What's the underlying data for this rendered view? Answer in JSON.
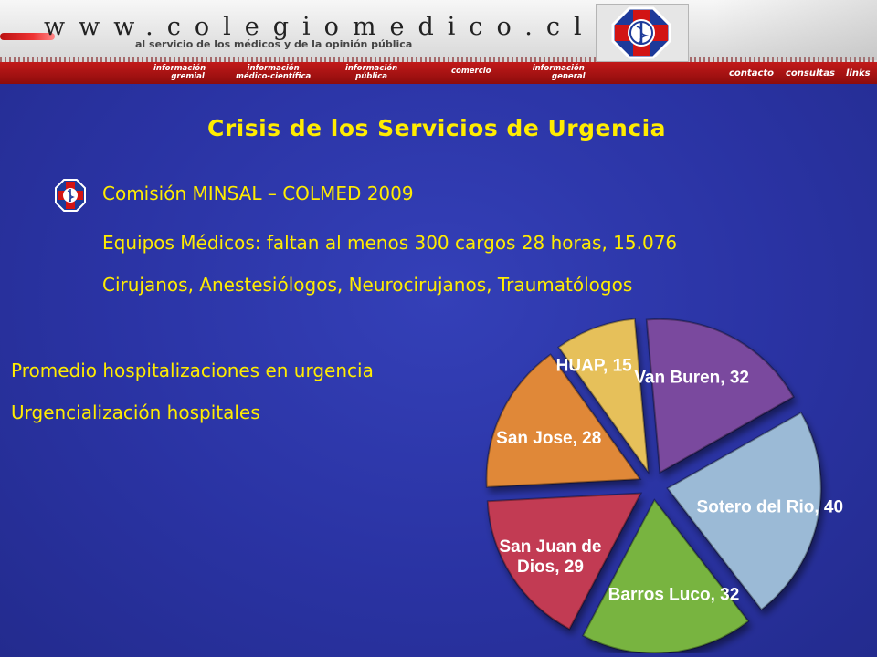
{
  "header": {
    "site_url": "www.colegiomedico.cl",
    "tagline": "al servicio de los médicos y de la opinión pública",
    "nav": [
      {
        "l1": "información",
        "l2": "gremial"
      },
      {
        "l1": "información",
        "l2": "médico-científica"
      },
      {
        "l1": "información",
        "l2": "pública"
      },
      {
        "l1": "comercio",
        "l2": ""
      },
      {
        "l1": "información",
        "l2": "general"
      }
    ],
    "nav_right": [
      "contacto",
      "consultas",
      "links"
    ]
  },
  "slide": {
    "title": "Crisis de los Servicios de Urgencia",
    "bullet1": "Comisión MINSAL – COLMED 2009",
    "bullet2": "Equipos Médicos: faltan al  menos 300 cargos 28 horas, 15.076",
    "bullet3": "Cirujanos, Anestesiólogos, Neurocirujanos, Traumatólogos",
    "left1": "Promedio hospitalizaciones en urgencia",
    "left2": "Urgencialización hospitales"
  },
  "colors": {
    "background": "#2c37a8",
    "text": "#ffec00",
    "nav": "#b31212"
  },
  "chart_data": {
    "type": "pie",
    "labels": [
      "Van Buren",
      "Sotero del Rio",
      "Barros Luco",
      "San Juan de Dios",
      "San Jose",
      "HUAP"
    ],
    "values": [
      32,
      40,
      32,
      29,
      28,
      15
    ],
    "label_text": [
      "Van Buren, 32",
      "Sotero del Rio, 40",
      "Barros Luco, 32",
      "San Juan de Dios, 29",
      "San Jose, 28",
      "HUAP, 15"
    ],
    "colors": [
      "#7a4a9e",
      "#9bbad6",
      "#78b440",
      "#c23a52",
      "#e08838",
      "#e6c05a"
    ]
  }
}
